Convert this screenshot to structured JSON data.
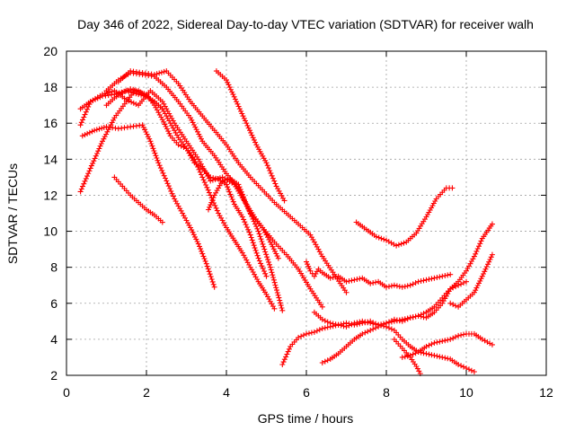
{
  "chart_data": {
    "type": "scatter",
    "title": "Day 346 of 2022, Sidereal Day-to-day VTEC variation (SDTVAR) for receiver walh",
    "xlabel": "GPS time / hours",
    "ylabel": "SDTVAR / TECUs",
    "xlim": [
      0,
      12
    ],
    "ylim": [
      2,
      20
    ],
    "xticks": [
      "0",
      "2",
      "4",
      "6",
      "8",
      "10",
      "12"
    ],
    "yticks": [
      "2",
      "4",
      "6",
      "8",
      "10",
      "12",
      "14",
      "16",
      "18",
      "20"
    ],
    "grid": true,
    "marker": "plus",
    "color": "#ff0000",
    "series": [
      {
        "x": [
          0.35,
          0.6,
          0.9,
          1.2,
          1.5,
          1.7,
          2.0,
          2.2,
          2.4,
          2.6,
          2.8,
          3.0,
          3.2,
          3.4,
          3.6,
          3.8,
          4.0,
          4.2,
          4.4,
          4.6,
          4.8,
          5.0
        ],
        "y": [
          12.2,
          13.5,
          15.0,
          16.3,
          17.2,
          17.8,
          17.6,
          17.0,
          16.2,
          15.3,
          14.8,
          14.6,
          13.8,
          13.5,
          13.0,
          12.9,
          12.6,
          11.5,
          10.8,
          9.8,
          8.5,
          7.5
        ]
      },
      {
        "x": [
          0.35,
          0.6,
          0.9,
          1.2,
          1.5,
          1.8,
          2.1,
          2.4,
          2.7,
          3.0,
          3.3,
          3.6,
          3.9,
          4.2,
          4.5,
          4.8,
          5.1,
          5.4
        ],
        "y": [
          15.9,
          17.2,
          17.6,
          17.8,
          17.3,
          17.0,
          17.8,
          17.2,
          16.0,
          15.0,
          14.0,
          12.8,
          13.0,
          12.6,
          11.5,
          10.0,
          8.0,
          5.6
        ]
      },
      {
        "x": [
          0.4,
          0.7,
          1.0,
          1.3,
          1.6,
          1.9,
          2.1,
          2.3,
          2.5,
          2.7,
          2.9,
          3.1,
          3.3,
          3.5,
          3.7
        ],
        "y": [
          15.3,
          15.6,
          15.8,
          15.7,
          15.8,
          15.9,
          15.0,
          13.8,
          12.8,
          11.8,
          11.0,
          10.2,
          9.3,
          8.2,
          6.9
        ]
      },
      {
        "x": [
          0.35,
          0.6,
          0.9,
          1.2,
          1.5,
          1.8,
          2.0,
          2.2,
          2.4,
          2.6,
          2.8,
          3.0,
          3.2,
          3.4,
          3.6,
          3.8,
          4.0,
          4.2,
          4.4,
          4.6,
          4.8,
          5.0,
          5.2
        ],
        "y": [
          16.8,
          17.2,
          17.5,
          17.6,
          17.8,
          17.6,
          17.5,
          17.2,
          16.8,
          16.0,
          15.2,
          14.6,
          14.0,
          13.0,
          12.0,
          11.0,
          10.2,
          9.5,
          8.8,
          8.0,
          7.2,
          6.5,
          5.7
        ]
      },
      {
        "x": [
          1.0,
          1.2,
          1.4,
          1.6,
          1.8,
          2.0,
          2.2,
          2.4
        ],
        "y": [
          17.0,
          17.4,
          17.7,
          17.9,
          17.8,
          17.5,
          17.2,
          16.8
        ]
      },
      {
        "x": [
          1.2,
          1.4,
          1.6,
          1.8,
          2.0,
          2.2,
          2.4
        ],
        "y": [
          13.0,
          12.5,
          12.0,
          11.6,
          11.2,
          10.9,
          10.5
        ]
      },
      {
        "x": [
          1.0,
          1.3,
          1.6,
          1.9,
          2.2,
          2.5,
          2.8,
          3.1,
          3.4,
          3.7,
          4.0,
          4.3,
          4.6,
          4.9,
          5.2,
          5.5,
          5.8,
          6.1,
          6.4
        ],
        "y": [
          17.8,
          18.4,
          18.8,
          18.7,
          18.6,
          18.0,
          17.2,
          16.3,
          15.0,
          14.2,
          13.2,
          12.4,
          11.0,
          10.2,
          9.4,
          8.7,
          7.9,
          6.8,
          5.8
        ]
      },
      {
        "x": [
          1.3,
          1.6,
          1.9,
          2.2,
          2.5,
          2.8,
          3.1,
          3.4,
          3.7,
          4.0,
          4.3,
          4.6,
          4.9,
          5.2,
          5.5,
          5.8,
          6.1,
          6.4,
          6.7,
          7.0
        ],
        "y": [
          18.3,
          18.9,
          18.8,
          18.7,
          18.9,
          18.2,
          17.2,
          16.4,
          15.6,
          14.8,
          13.8,
          13.0,
          12.3,
          11.6,
          11.0,
          10.4,
          9.8,
          8.6,
          7.6,
          6.6
        ]
      },
      {
        "x": [
          3.75,
          4.0,
          4.25,
          4.5,
          4.75,
          5.0,
          5.25,
          5.45
        ],
        "y": [
          18.9,
          18.4,
          17.2,
          16.0,
          14.8,
          13.8,
          12.5,
          11.7
        ]
      },
      {
        "x": [
          3.55,
          3.7,
          3.9,
          4.1,
          4.3,
          4.5,
          4.7,
          4.9,
          5.1,
          5.3
        ],
        "y": [
          11.2,
          12.0,
          12.8,
          12.9,
          12.6,
          11.5,
          10.8,
          10.2,
          9.4,
          8.5
        ]
      },
      {
        "x": [
          6.0,
          6.1,
          6.2,
          6.3,
          6.4,
          6.6,
          6.8,
          7.0,
          7.2,
          7.4,
          7.6,
          7.8,
          8.0,
          8.2,
          8.4,
          8.6,
          8.8,
          9.0,
          9.2,
          9.4,
          9.6
        ],
        "y": [
          8.3,
          7.8,
          7.5,
          7.9,
          7.7,
          7.4,
          7.5,
          7.2,
          7.3,
          7.4,
          7.1,
          7.2,
          6.9,
          7.0,
          6.9,
          7.0,
          7.2,
          7.3,
          7.4,
          7.5,
          7.6
        ]
      },
      {
        "x": [
          7.25,
          7.5,
          7.75,
          8.0,
          8.25,
          8.5,
          8.75,
          9.0,
          9.25,
          9.5,
          9.65
        ],
        "y": [
          10.5,
          10.1,
          9.7,
          9.5,
          9.2,
          9.4,
          9.9,
          10.8,
          11.8,
          12.4,
          12.4
        ]
      },
      {
        "x": [
          5.4,
          5.6,
          5.8,
          6.0,
          6.2,
          6.4,
          6.6,
          6.8,
          7.0,
          7.2,
          7.4,
          7.6,
          7.8,
          8.0,
          8.2,
          8.4,
          8.6,
          8.8,
          9.0,
          9.2,
          9.4,
          9.6,
          9.8,
          10.0
        ],
        "y": [
          2.6,
          3.6,
          4.1,
          4.3,
          4.4,
          4.6,
          4.7,
          4.8,
          4.9,
          4.8,
          4.9,
          5.0,
          4.8,
          4.9,
          5.1,
          5.0,
          5.2,
          5.3,
          5.5,
          5.8,
          6.3,
          6.8,
          7.0,
          7.2
        ]
      },
      {
        "x": [
          6.4,
          6.6,
          6.8,
          7.0,
          7.2,
          7.4,
          7.6,
          7.8,
          8.0,
          8.2,
          8.4,
          8.6,
          8.8,
          9.0,
          9.2,
          9.4,
          9.6,
          9.8,
          10.0,
          10.2,
          10.4,
          10.65
        ],
        "y": [
          2.7,
          2.9,
          3.2,
          3.6,
          4.0,
          4.3,
          4.5,
          4.7,
          4.9,
          5.0,
          5.1,
          5.2,
          5.3,
          5.2,
          5.5,
          6.0,
          6.8,
          7.2,
          7.8,
          8.6,
          9.6,
          10.4
        ]
      },
      {
        "x": [
          6.2,
          6.4,
          6.6,
          6.8,
          7.0,
          7.2,
          7.4,
          7.6,
          7.8,
          8.0,
          8.2,
          8.4,
          8.6,
          8.8,
          9.0,
          9.2,
          9.4,
          9.6,
          9.8,
          10.0,
          10.2
        ],
        "y": [
          5.5,
          5.1,
          4.9,
          4.8,
          4.7,
          4.9,
          5.0,
          4.9,
          4.8,
          4.7,
          4.5,
          4.0,
          3.6,
          3.3,
          3.2,
          3.1,
          3.0,
          2.9,
          2.6,
          2.4,
          2.2
        ]
      },
      {
        "x": [
          8.4,
          8.6,
          8.8,
          9.0,
          9.2,
          9.4,
          9.6,
          9.8,
          10.0,
          10.2,
          10.4,
          10.65
        ],
        "y": [
          3.0,
          3.1,
          3.3,
          3.6,
          3.8,
          3.9,
          4.0,
          4.2,
          4.3,
          4.3,
          4.0,
          3.7
        ]
      },
      {
        "x": [
          9.6,
          9.8,
          10.0,
          10.2,
          10.4,
          10.65
        ],
        "y": [
          6.0,
          5.8,
          6.2,
          6.6,
          7.5,
          8.7
        ]
      },
      {
        "x": [
          8.2,
          8.4,
          8.6,
          8.75,
          8.85
        ],
        "y": [
          4.0,
          3.5,
          3.0,
          2.5,
          2.1
        ]
      }
    ]
  }
}
